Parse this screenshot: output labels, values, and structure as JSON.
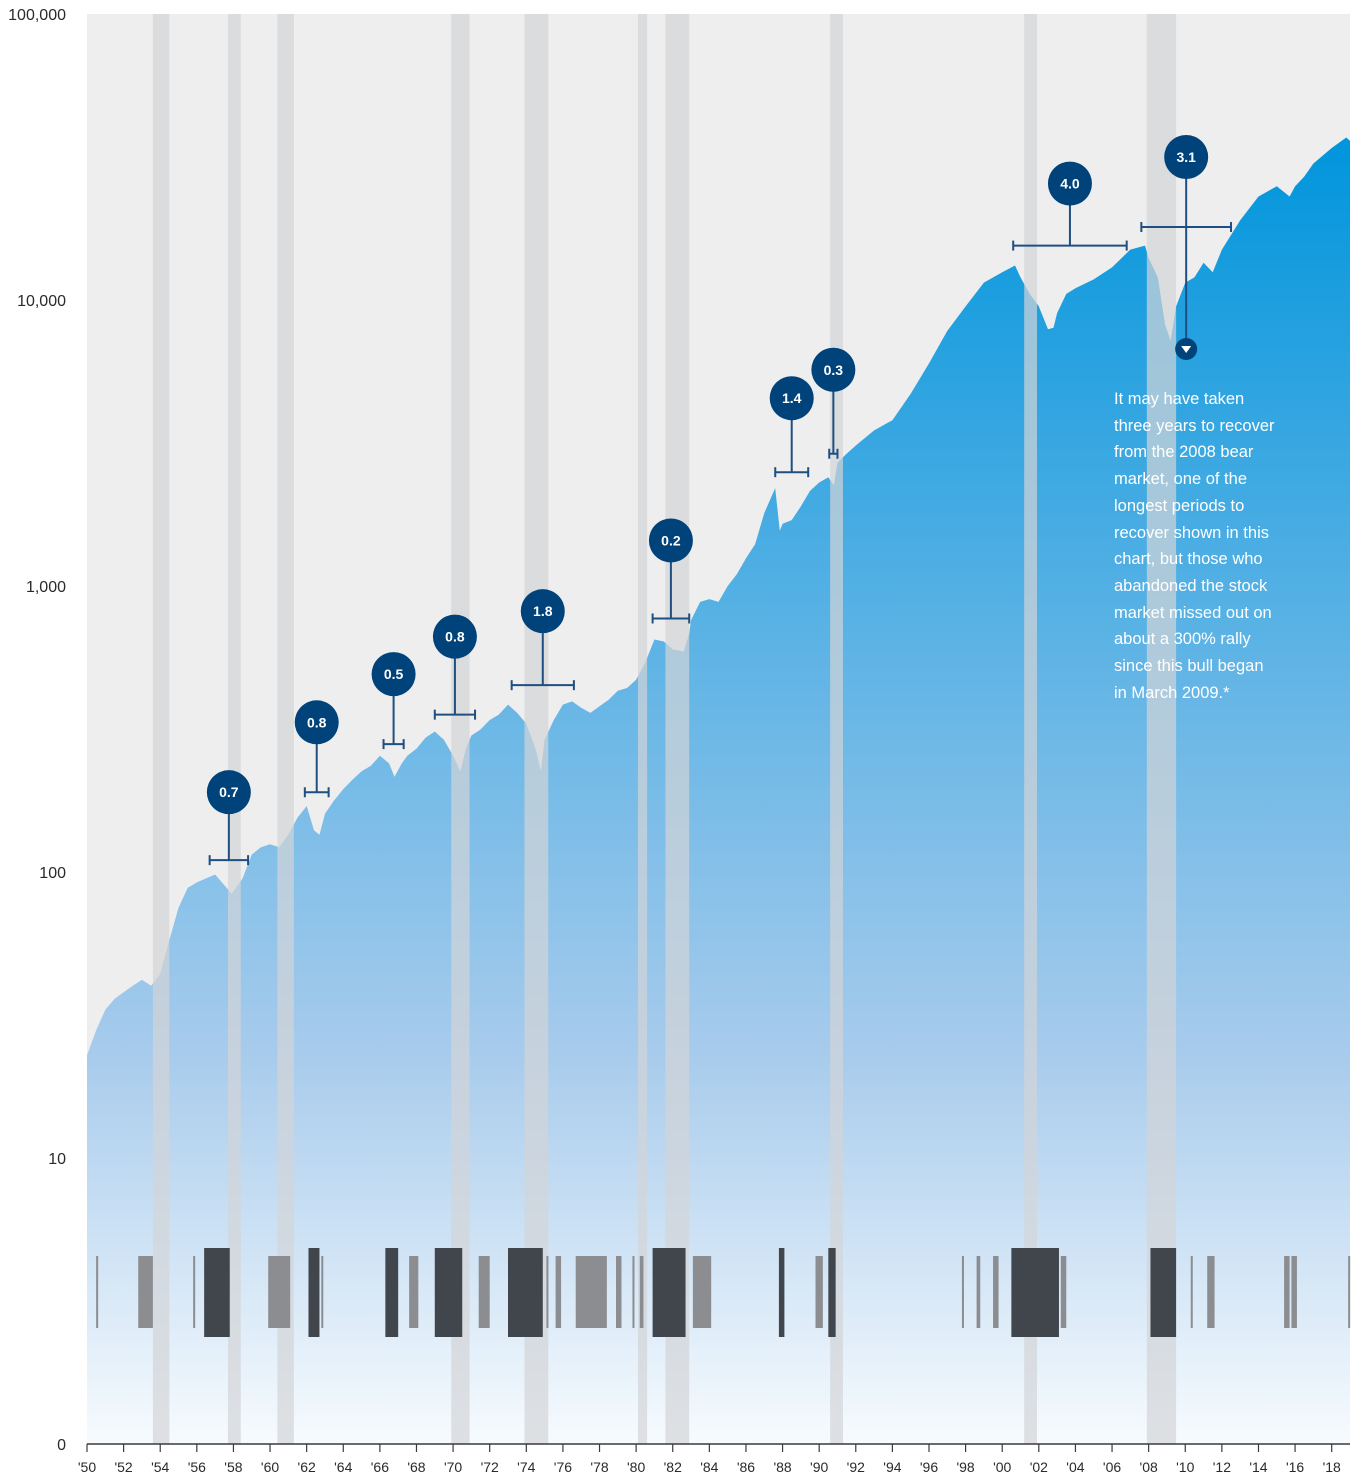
{
  "chart_data": {
    "type": "area",
    "title": "",
    "xlabel": "",
    "ylabel": "",
    "y_scale": "log",
    "ylim": [
      1,
      100000
    ],
    "xlim": [
      1950,
      2019
    ],
    "y_ticks": [
      {
        "value": 1,
        "label": "0"
      },
      {
        "value": 10,
        "label": "10"
      },
      {
        "value": 100,
        "label": "100"
      },
      {
        "value": 1000,
        "label": "1,000"
      },
      {
        "value": 10000,
        "label": "10,000"
      },
      {
        "value": 100000,
        "label": "100,000"
      }
    ],
    "x_ticks": [
      {
        "value": 1950,
        "label": "'50"
      },
      {
        "value": 1952,
        "label": "'52"
      },
      {
        "value": 1954,
        "label": "'54"
      },
      {
        "value": 1956,
        "label": "'56"
      },
      {
        "value": 1958,
        "label": "'58"
      },
      {
        "value": 1960,
        "label": "'60"
      },
      {
        "value": 1962,
        "label": "'62"
      },
      {
        "value": 1964,
        "label": "'64"
      },
      {
        "value": 1966,
        "label": "'66"
      },
      {
        "value": 1968,
        "label": "'68"
      },
      {
        "value": 1970,
        "label": "'70"
      },
      {
        "value": 1972,
        "label": "'72"
      },
      {
        "value": 1974,
        "label": "'74"
      },
      {
        "value": 1976,
        "label": "'76"
      },
      {
        "value": 1978,
        "label": "'78"
      },
      {
        "value": 1980,
        "label": "'80"
      },
      {
        "value": 1982,
        "label": "'82"
      },
      {
        "value": 1984,
        "label": "'84"
      },
      {
        "value": 1986,
        "label": "'86"
      },
      {
        "value": 1988,
        "label": "'88"
      },
      {
        "value": 1990,
        "label": "'90"
      },
      {
        "value": 1992,
        "label": "'92"
      },
      {
        "value": 1994,
        "label": "'94"
      },
      {
        "value": 1996,
        "label": "'96"
      },
      {
        "value": 1998,
        "label": "'98"
      },
      {
        "value": 2000,
        "label": "'00"
      },
      {
        "value": 2002,
        "label": "'02"
      },
      {
        "value": 2004,
        "label": "'04"
      },
      {
        "value": 2006,
        "label": "'06"
      },
      {
        "value": 2008,
        "label": "'08"
      },
      {
        "value": 2010,
        "label": "'10"
      },
      {
        "value": 2012,
        "label": "'12"
      },
      {
        "value": 2014,
        "label": "'14"
      },
      {
        "value": 2016,
        "label": "'16"
      },
      {
        "value": 2018,
        "label": "'18"
      }
    ],
    "grid": false,
    "series": [
      {
        "x": [
          1950.0,
          1950.5,
          1951.0,
          1951.5,
          1952.0,
          1952.5,
          1953.0,
          1953.5,
          1954.0,
          1954.5,
          1955.0,
          1955.5,
          1956.0,
          1956.5,
          1957.0,
          1957.5,
          1957.9,
          1958.5,
          1959.0,
          1959.5,
          1960.0,
          1960.5,
          1961.0,
          1961.5,
          1962.0,
          1962.4,
          1962.7,
          1963.0,
          1963.5,
          1964.0,
          1964.5,
          1965.0,
          1965.5,
          1966.0,
          1966.5,
          1966.8,
          1967.2,
          1967.5,
          1968.0,
          1968.5,
          1969.0,
          1969.5,
          1970.0,
          1970.4,
          1970.7,
          1971.0,
          1971.5,
          1972.0,
          1972.5,
          1973.0,
          1973.5,
          1974.0,
          1974.5,
          1974.8,
          1975.0,
          1975.5,
          1976.0,
          1976.5,
          1977.0,
          1977.5,
          1978.0,
          1978.5,
          1979.0,
          1979.5,
          1980.0,
          1980.5,
          1981.0,
          1981.5,
          1982.0,
          1982.6,
          1982.9,
          1983.0,
          1983.5,
          1984.0,
          1984.5,
          1985.0,
          1985.5,
          1986.0,
          1986.5,
          1987.0,
          1987.6,
          1987.85,
          1988.0,
          1988.5,
          1989.0,
          1989.5,
          1990.0,
          1990.5,
          1990.8,
          1991.0,
          1991.5,
          1992.0,
          1993.0,
          1994.0,
          1995.0,
          1996.0,
          1997.0,
          1998.0,
          1999.0,
          2000.0,
          2000.7,
          2001.0,
          2001.5,
          2002.0,
          2002.5,
          2002.8,
          2003.0,
          2003.5,
          2004.0,
          2005.0,
          2006.0,
          2007.0,
          2007.8,
          2008.0,
          2008.5,
          2008.9,
          2009.2,
          2009.5,
          2010.0,
          2010.5,
          2011.0,
          2011.5,
          2012.0,
          2013.0,
          2014.0,
          2015.0,
          2015.7,
          2016.0,
          2016.5,
          2017.0,
          2018.0,
          2018.8,
          2019.0
        ],
        "values": [
          22.9,
          28.0,
          33.0,
          36.0,
          38.0,
          40.0,
          42.0,
          40.0,
          44.0,
          58.0,
          75.0,
          88.0,
          92.0,
          95.0,
          98.0,
          90.0,
          84.0,
          95.0,
          115.0,
          122.0,
          125.0,
          122.0,
          135.0,
          155.0,
          170.0,
          140.0,
          135.0,
          160.0,
          178.0,
          195.0,
          210.0,
          225.0,
          235.0,
          255.0,
          240.0,
          215.0,
          240.0,
          255.0,
          270.0,
          295.0,
          310.0,
          290.0,
          255.0,
          225.0,
          270.0,
          300.0,
          315.0,
          340.0,
          355.0,
          385.0,
          360.0,
          330.0,
          270.0,
          225.0,
          290.0,
          340.0,
          385.0,
          395.0,
          375.0,
          360.0,
          380.0,
          400.0,
          430.0,
          440.0,
          470.0,
          540.0,
          650.0,
          640.0,
          600.0,
          590.0,
          680.0,
          760.0,
          880.0,
          900.0,
          880.0,
          1000.0,
          1100.0,
          1250.0,
          1400.0,
          1800.0,
          2200.0,
          1560.0,
          1650.0,
          1700.0,
          1900.0,
          2150.0,
          2300.0,
          2400.0,
          2250.0,
          2700.0,
          2900.0,
          3100.0,
          3500.0,
          3800.0,
          4700.0,
          6000.0,
          7800.0,
          9500.0,
          11500.0,
          12500.0,
          13200.0,
          12000.0,
          10500.0,
          9500.0,
          7900.0,
          8000.0,
          9000.0,
          10500.0,
          11000.0,
          11800.0,
          13000.0,
          15000.0,
          15500.0,
          14000.0,
          12000.0,
          8200.0,
          7200.0,
          9500.0,
          11500.0,
          12000.0,
          13500.0,
          12500.0,
          15000.0,
          19000.0,
          23000.0,
          25000.0,
          23000.0,
          25000.0,
          27000.0,
          30000.0,
          34000.0,
          37000.0,
          36000.0
        ]
      }
    ],
    "recession_bands": [
      [
        1953.6,
        1954.5
      ],
      [
        1957.7,
        1958.4
      ],
      [
        1960.4,
        1961.3
      ],
      [
        1969.9,
        1970.9
      ],
      [
        1973.9,
        1975.2
      ],
      [
        1980.1,
        1980.6
      ],
      [
        1981.6,
        1982.9
      ],
      [
        1990.6,
        1991.3
      ],
      [
        2001.2,
        2001.9
      ],
      [
        2007.9,
        2009.5
      ]
    ],
    "bear_markets": [
      {
        "label": "0.7",
        "range": [
          1956.7,
          1958.8
        ],
        "bracket_value": 110
      },
      {
        "label": "0.8",
        "range": [
          1961.9,
          1963.2
        ],
        "bracket_value": 190
      },
      {
        "label": "0.5",
        "range": [
          1966.2,
          1967.3
        ],
        "bracket_value": 280
      },
      {
        "label": "0.8",
        "range": [
          1969.0,
          1971.2
        ],
        "bracket_value": 355
      },
      {
        "label": "1.8",
        "range": [
          1973.2,
          1976.6
        ],
        "bracket_value": 450
      },
      {
        "label": "0.2",
        "range": [
          1980.9,
          1982.9
        ],
        "bracket_value": 770
      },
      {
        "label": "1.4",
        "range": [
          1987.6,
          1989.4
        ],
        "bracket_value": 2500
      },
      {
        "label": "0.3",
        "range": [
          1990.55,
          1991.0
        ],
        "bracket_value": 2900
      },
      {
        "label": "4.0",
        "range": [
          2000.6,
          2006.8
        ],
        "bracket_value": 15500
      },
      {
        "label": "3.1",
        "range": [
          2007.6,
          2012.5
        ],
        "bracket_value": 18000
      }
    ],
    "bar_strip": {
      "dark": [
        [
          1956.4,
          1957.8
        ],
        [
          1962.1,
          1962.7
        ],
        [
          1966.3,
          1967.0
        ],
        [
          1969.0,
          1970.5
        ],
        [
          1973.0,
          1974.9
        ],
        [
          1980.9,
          1982.7
        ],
        [
          1987.8,
          1988.1
        ],
        [
          1990.5,
          1990.9
        ],
        [
          2000.5,
          2003.1
        ],
        [
          2008.1,
          2009.5
        ]
      ],
      "light": [
        [
          1950.5,
          1950.6
        ],
        [
          1952.8,
          1953.6
        ],
        [
          1955.8,
          1955.9
        ],
        [
          1959.9,
          1961.1
        ],
        [
          1962.8,
          1962.9
        ],
        [
          1967.6,
          1968.1
        ],
        [
          1971.4,
          1972.0
        ],
        [
          1975.1,
          1975.2
        ],
        [
          1975.6,
          1975.9
        ],
        [
          1976.7,
          1978.4
        ],
        [
          1978.9,
          1979.2
        ],
        [
          1979.8,
          1979.9
        ],
        [
          1980.2,
          1980.4
        ],
        [
          1983.1,
          1984.1
        ],
        [
          1989.8,
          1990.2
        ],
        [
          1997.8,
          1997.9
        ],
        [
          1998.6,
          1998.8
        ],
        [
          1999.5,
          1999.8
        ],
        [
          2003.2,
          2003.5
        ],
        [
          2010.3,
          2010.4
        ],
        [
          2011.2,
          2011.6
        ],
        [
          2015.4,
          2015.7
        ],
        [
          2015.8,
          2016.1
        ],
        [
          2018.9,
          2019.0
        ]
      ]
    },
    "colors": {
      "plot_bg": "#eeeeef",
      "recession_band": "#d3d4d7",
      "area_top": "#0095dc",
      "area_bottom": "#f7fbfe",
      "bubble": "#00427a",
      "bracket": "#1f4f80",
      "strip_dark": "#41464c",
      "strip_light": "#8b8d90"
    },
    "annotation": {
      "lines": [
        "It may have taken",
        "three years to recover",
        "from the 2008 bear",
        "market, one of the",
        "longest periods to",
        "recover shown in this",
        "chart, but those who",
        "abandoned the stock",
        "market missed out on",
        "about a 300% rally",
        "since this bull began",
        "in March 2009.*"
      ]
    }
  }
}
